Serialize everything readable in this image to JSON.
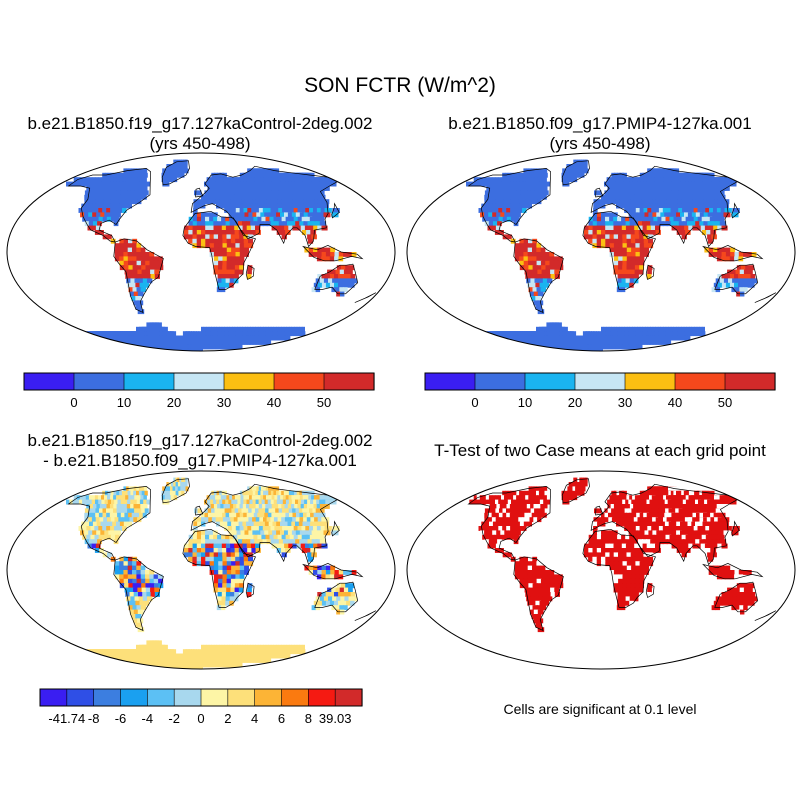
{
  "figure": {
    "title": "SON FCTR (W/m^2)"
  },
  "panels": [
    {
      "id": "control",
      "title_lines": [
        "b.e21.B1850.f19_g17.127kaControl-2deg.002",
        "(yrs 450-498)"
      ]
    },
    {
      "id": "pmip4",
      "title_lines": [
        "b.e21.B1850.f09_g17.PMIP4-127ka.001",
        "(yrs 450-498)"
      ]
    },
    {
      "id": "difference",
      "title_lines": [
        "b.e21.B1850.f19_g17.127kaControl-2deg.002",
        "- b.e21.B1850.f09_g17.PMIP4-127ka.001"
      ]
    },
    {
      "id": "ttest",
      "title_lines": [
        "T-Test of two Case means at each grid point"
      ],
      "note": "Cells are significant at 0.1 level"
    }
  ],
  "colorbars": {
    "absolute": {
      "colors": [
        "#3a1ef2",
        "#3c6ee0",
        "#1ab4f0",
        "#c6e6f4",
        "#fcbf12",
        "#f5481c",
        "#d22a2a"
      ],
      "labels": [
        "0",
        "10",
        "20",
        "30",
        "40",
        "50"
      ]
    },
    "difference": {
      "colors": [
        "#3a1ef2",
        "#2f4fe6",
        "#3c7ee0",
        "#1aa0f0",
        "#5cc0f4",
        "#a8d8ee",
        "#fdf5a6",
        "#fde07a",
        "#fcb436",
        "#fa7a10",
        "#f51a12",
        "#d22a2a"
      ],
      "labels": [
        "-41.74",
        "-8",
        "-6",
        "-4",
        "-2",
        "0",
        "2",
        "4",
        "6",
        "8",
        "39.03"
      ]
    }
  },
  "map_colors": {
    "ocean": "#ffffff",
    "coast": "#000000",
    "cold": "#3c6ee0",
    "significant": "#e01010"
  }
}
